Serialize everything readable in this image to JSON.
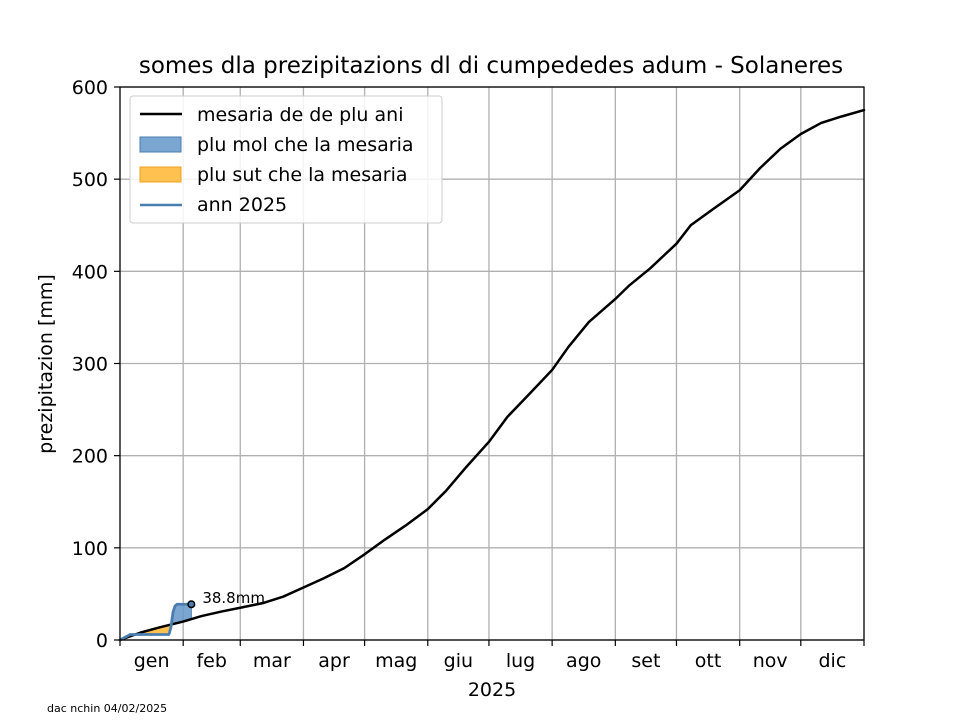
{
  "chart_data": {
    "type": "line",
    "title": "somes dla prezipitazions dl di cumpededes adum - Solaneres",
    "xlabel": "2025",
    "ylabel": "prezipitazion [mm]",
    "ylim": [
      0,
      600
    ],
    "xlim": [
      0,
      365
    ],
    "grid": true,
    "legend_position": "top-left",
    "yticks": [
      0,
      100,
      200,
      300,
      400,
      500,
      600
    ],
    "ytick_labels": [
      "0",
      "100",
      "200",
      "300",
      "400",
      "500",
      "600"
    ],
    "month_boundaries": [
      0,
      31,
      59,
      90,
      120,
      151,
      181,
      212,
      243,
      273,
      304,
      334,
      365
    ],
    "month_labels": [
      "gen",
      "feb",
      "mar",
      "apr",
      "mag",
      "giu",
      "lug",
      "ago",
      "set",
      "ott",
      "nov",
      "dic"
    ],
    "legend": {
      "mean": "mesaria de de plu ani",
      "above": "plu mol che la mesaria",
      "below": "plu sut che la mesaria",
      "year": "ann 2025"
    },
    "series": [
      {
        "name": "mesaria de de plu ani",
        "color": "#000000",
        "x": [
          0,
          10,
          20,
          31,
          40,
          50,
          59,
          70,
          80,
          90,
          100,
          110,
          120,
          130,
          140,
          151,
          160,
          170,
          181,
          190,
          200,
          212,
          220,
          230,
          243,
          250,
          260,
          273,
          280,
          290,
          304,
          314,
          324,
          334,
          344,
          354,
          365
        ],
        "values": [
          0,
          8,
          14,
          20,
          26,
          31,
          35,
          40,
          47,
          57,
          67,
          78,
          93,
          109,
          124,
          142,
          162,
          188,
          215,
          242,
          265,
          293,
          318,
          345,
          370,
          385,
          403,
          430,
          450,
          466,
          488,
          512,
          533,
          549,
          561,
          568,
          575
        ]
      },
      {
        "name": "ann 2025",
        "color": "#4a7eb0",
        "x": [
          0,
          5,
          10,
          15,
          20,
          24,
          25,
          26,
          27,
          28,
          30,
          32,
          35
        ],
        "values": [
          0,
          6,
          6,
          6,
          6,
          6,
          14,
          30,
          37,
          38.8,
          38.8,
          38.8,
          38.8
        ]
      }
    ],
    "fills": {
      "above_color": "#6497c9",
      "above_edge": "#4a7eb0",
      "below_color": "#ffb733",
      "below_edge": "#f0a020"
    },
    "annotation": {
      "text": "38.8mm",
      "x": 35,
      "y": 38.8
    }
  },
  "footer": {
    "text": "dac nchin 04/02/2025"
  }
}
